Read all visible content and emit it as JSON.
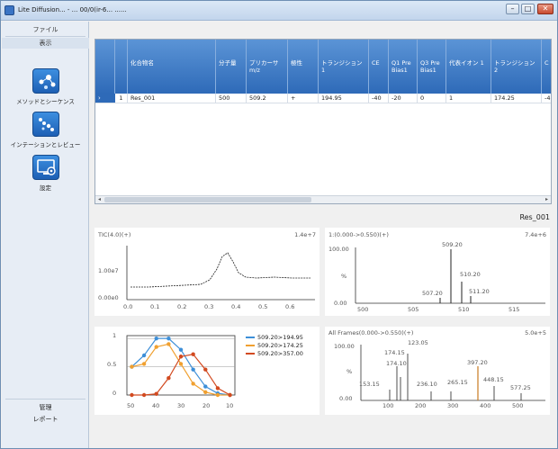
{
  "window": {
    "title": "Lite Diffusion... - ... 00/0(ir-6... ......"
  },
  "leftpane": {
    "header_top": "ファイル",
    "header_sub": "表示",
    "nav_items": [
      {
        "label": "メソッドとシーケンス",
        "icon": "molecule-icon"
      },
      {
        "label": "インテーションとレビュー",
        "icon": "scatter-icon"
      },
      {
        "label": "設定",
        "icon": "monitor-settings-icon"
      }
    ],
    "bottom_1": "管理",
    "bottom_2": "レポート"
  },
  "grid": {
    "headers": [
      "",
      "化合物名",
      "分子量",
      "プリカーサ m/z",
      "極性",
      "トランジション 1",
      "CE",
      "Q1 Pre Bias1",
      "Q3 Pre Bias1",
      "代表イオン 1",
      "トランジション 2",
      "C"
    ],
    "row": {
      "index": "1",
      "values": [
        "Res_001",
        "500",
        "509.2",
        "+",
        "194.95",
        "-40",
        "-20",
        "0",
        "1",
        "174.25",
        "-4"
      ]
    }
  },
  "detail_title": "Res_001",
  "plot_tl": {
    "title": "TIC(4.0)(+)",
    "scale": "1.4e+7",
    "yticks": [
      "1.00e7",
      "0.00e0"
    ],
    "xticks": [
      "0.0",
      "0.1",
      "0.2",
      "0.3",
      "0.4",
      "0.5",
      "0.6"
    ]
  },
  "plot_tr": {
    "title": "1:(0.000->0.550)(+)",
    "scale": "7.4e+6",
    "yticks": [
      "100.00",
      "%",
      "0.00"
    ],
    "xticks": [
      "500",
      "505",
      "510",
      "515"
    ],
    "peaks": [
      {
        "label": "509.20"
      },
      {
        "label": "510.20"
      },
      {
        "label": "507.20"
      },
      {
        "label": "511.20"
      }
    ]
  },
  "plot_bl": {
    "yticks": [
      "1",
      "0.5",
      "0"
    ],
    "xticks": [
      "50",
      "40",
      "30",
      "20",
      "10"
    ],
    "chart_data": {
      "type": "line",
      "x": [
        50,
        45,
        40,
        35,
        30,
        25,
        20,
        15,
        10
      ],
      "series": [
        {
          "name": "509.20>194.95",
          "color": "#3d8fd8",
          "values": [
            0.5,
            0.7,
            1.0,
            1.0,
            0.8,
            0.45,
            0.15,
            0.03,
            0.0
          ]
        },
        {
          "name": "509.20>174.25",
          "color": "#f0a030",
          "values": [
            0.5,
            0.55,
            0.85,
            0.9,
            0.55,
            0.2,
            0.05,
            0.0,
            0.0
          ]
        },
        {
          "name": "509.20>357.00",
          "color": "#d24a20",
          "values": [
            0.0,
            0.0,
            0.02,
            0.3,
            0.68,
            0.72,
            0.45,
            0.12,
            0.0
          ]
        }
      ],
      "xlim": [
        52,
        8
      ],
      "ylim": [
        0,
        1.05
      ]
    }
  },
  "plot_br": {
    "title": "All Frames(0.000->0.550)(+)",
    "scale": "5.0e+5",
    "yticks": [
      "100.00",
      "%",
      "0.00"
    ],
    "xticks": [
      "100",
      "200",
      "300",
      "400",
      "500"
    ],
    "labels": [
      "123.05",
      "174.15",
      "174.10",
      "153.15",
      "236.10",
      "265.15",
      "397.20",
      "448.15",
      "577.25"
    ]
  }
}
